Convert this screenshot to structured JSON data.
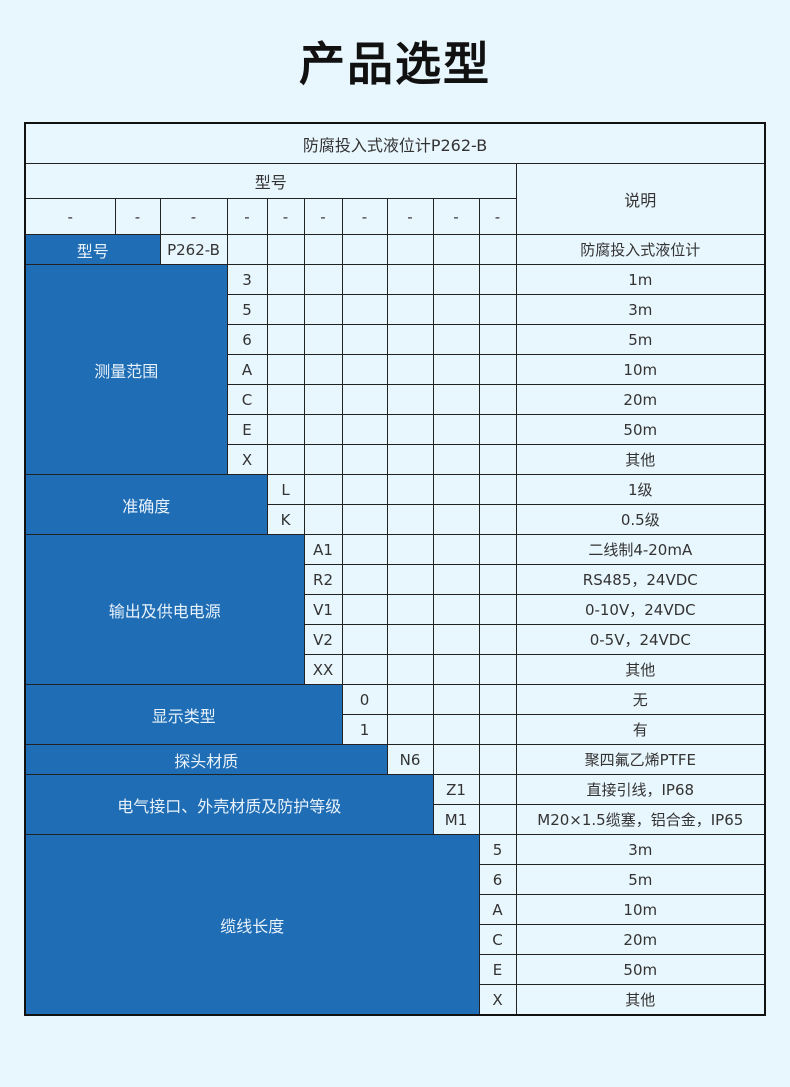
{
  "page_title": "产品选型",
  "table": {
    "title": "防腐投入式液位计P262-B",
    "header_model": "型号",
    "header_desc": "说明",
    "dashes": [
      "-",
      "-",
      "-",
      "-",
      "-",
      "-",
      "-",
      "-",
      "-",
      "-"
    ],
    "model_row": {
      "label": "型号",
      "code": "P262-B",
      "desc": "防腐投入式液位计"
    },
    "groups": [
      {
        "label": "测量范围",
        "span": 3,
        "items": [
          {
            "code": "3",
            "desc": "1m"
          },
          {
            "code": "5",
            "desc": "3m"
          },
          {
            "code": "6",
            "desc": "5m"
          },
          {
            "code": "A",
            "desc": "10m"
          },
          {
            "code": "C",
            "desc": "20m"
          },
          {
            "code": "E",
            "desc": "50m"
          },
          {
            "code": "X",
            "desc": "其他"
          }
        ]
      },
      {
        "label": "准确度",
        "span": 4,
        "items": [
          {
            "code": "L",
            "desc": "1级"
          },
          {
            "code": "K",
            "desc": "0.5级"
          }
        ]
      },
      {
        "label": "输出及供电电源",
        "span": 5,
        "items": [
          {
            "code": "A1",
            "desc": "二线制4-20mA"
          },
          {
            "code": "R2",
            "desc": "RS485，24VDC"
          },
          {
            "code": "V1",
            "desc": "0-10V，24VDC"
          },
          {
            "code": "V2",
            "desc": "0-5V，24VDC"
          },
          {
            "code": "XX",
            "desc": "其他"
          }
        ]
      },
      {
        "label": "显示类型",
        "span": 6,
        "items": [
          {
            "code": "0",
            "desc": "无"
          },
          {
            "code": "1",
            "desc": "有"
          }
        ]
      },
      {
        "label": "探头材质",
        "span": 7,
        "items": [
          {
            "code": "N6",
            "desc": "聚四氟乙烯PTFE"
          }
        ]
      },
      {
        "label": "电气接口、外壳材质及防护等级",
        "span": 8,
        "items": [
          {
            "code": "Z1",
            "desc": "直接引线，IP68"
          },
          {
            "code": "M1",
            "desc": "M20×1.5缆塞，铝合金，IP65"
          }
        ]
      },
      {
        "label": "缆线长度",
        "span": 9,
        "items": [
          {
            "code": "5",
            "desc": "3m"
          },
          {
            "code": "6",
            "desc": "5m"
          },
          {
            "code": "A",
            "desc": "10m"
          },
          {
            "code": "C",
            "desc": "20m"
          },
          {
            "code": "E",
            "desc": "50m"
          },
          {
            "code": "X",
            "desc": "其他"
          }
        ]
      }
    ]
  },
  "colors": {
    "background": "#e8f6fd",
    "accent": "#1f6db5"
  }
}
